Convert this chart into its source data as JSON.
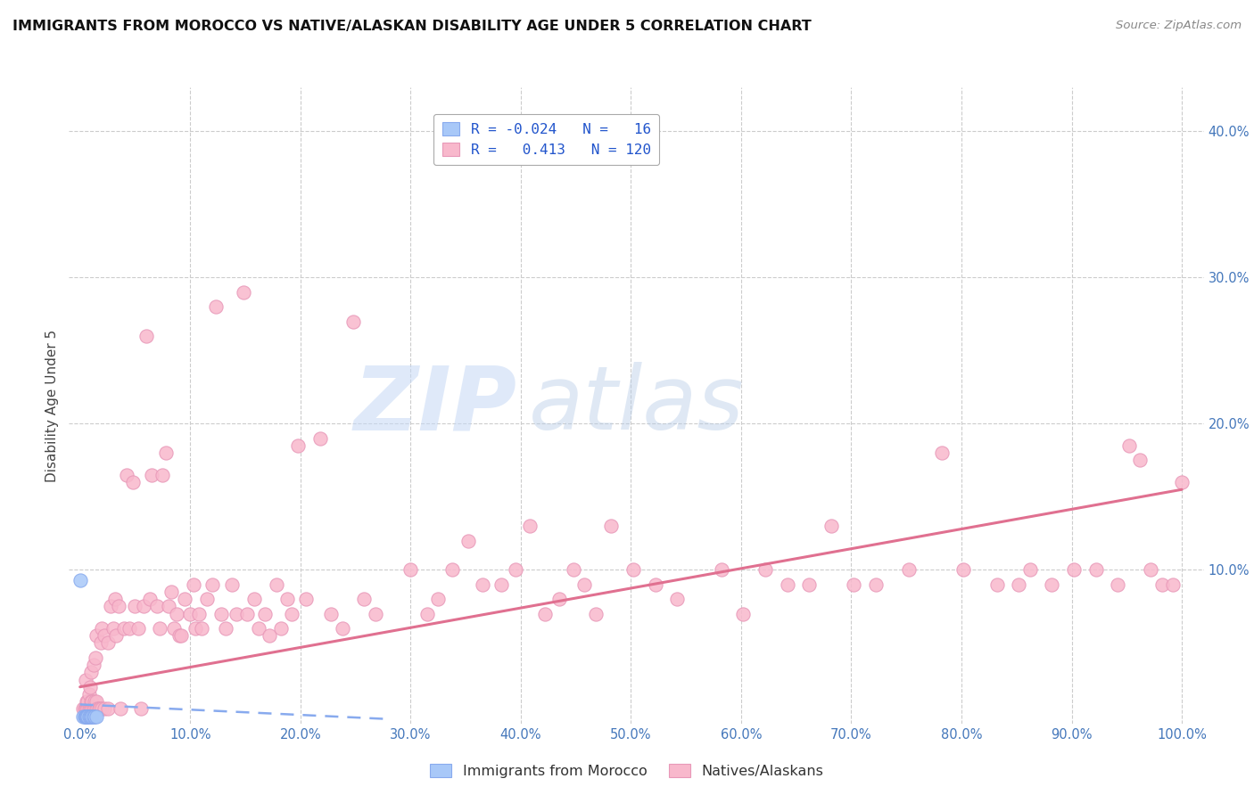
{
  "title": "IMMIGRANTS FROM MOROCCO VS NATIVE/ALASKAN DISABILITY AGE UNDER 5 CORRELATION CHART",
  "source": "Source: ZipAtlas.com",
  "ylabel": "Disability Age Under 5",
  "xlim": [
    -0.01,
    1.02
  ],
  "ylim": [
    -0.005,
    0.43
  ],
  "xticks": [
    0.0,
    0.1,
    0.2,
    0.3,
    0.4,
    0.5,
    0.6,
    0.7,
    0.8,
    0.9,
    1.0
  ],
  "xticklabels": [
    "0.0%",
    "10.0%",
    "20.0%",
    "30.0%",
    "40.0%",
    "50.0%",
    "60.0%",
    "70.0%",
    "80.0%",
    "90.0%",
    "100.0%"
  ],
  "yticks": [
    0.0,
    0.1,
    0.2,
    0.3,
    0.4
  ],
  "yticklabels": [
    "",
    "10.0%",
    "20.0%",
    "30.0%",
    "40.0%"
  ],
  "color_blue_fill": "#a8c8f8",
  "color_pink_fill": "#f8b8cc",
  "color_blue_edge": "#88aaee",
  "color_pink_edge": "#e898b8",
  "trendline_pink": "#e07090",
  "trendline_blue": "#88aaee",
  "watermark_zip": "ZIP",
  "watermark_atlas": "atlas",
  "morocco_points": [
    [
      0.0,
      0.093
    ],
    [
      0.003,
      0.0
    ],
    [
      0.004,
      0.0
    ],
    [
      0.005,
      0.0
    ],
    [
      0.005,
      0.0
    ],
    [
      0.006,
      0.0
    ],
    [
      0.006,
      0.0
    ],
    [
      0.007,
      0.0
    ],
    [
      0.007,
      0.0
    ],
    [
      0.008,
      0.0
    ],
    [
      0.009,
      0.0
    ],
    [
      0.01,
      0.0
    ],
    [
      0.011,
      0.0
    ],
    [
      0.012,
      0.0
    ],
    [
      0.013,
      0.0
    ],
    [
      0.015,
      0.0
    ]
  ],
  "native_points": [
    [
      0.003,
      0.005
    ],
    [
      0.004,
      0.005
    ],
    [
      0.005,
      0.005
    ],
    [
      0.005,
      0.025
    ],
    [
      0.006,
      0.005
    ],
    [
      0.006,
      0.01
    ],
    [
      0.007,
      0.005
    ],
    [
      0.007,
      0.01
    ],
    [
      0.008,
      0.005
    ],
    [
      0.008,
      0.015
    ],
    [
      0.009,
      0.005
    ],
    [
      0.009,
      0.02
    ],
    [
      0.01,
      0.005
    ],
    [
      0.01,
      0.01
    ],
    [
      0.01,
      0.03
    ],
    [
      0.011,
      0.005
    ],
    [
      0.011,
      0.01
    ],
    [
      0.012,
      0.005
    ],
    [
      0.012,
      0.035
    ],
    [
      0.013,
      0.005
    ],
    [
      0.013,
      0.01
    ],
    [
      0.014,
      0.04
    ],
    [
      0.015,
      0.005
    ],
    [
      0.015,
      0.01
    ],
    [
      0.015,
      0.055
    ],
    [
      0.016,
      0.005
    ],
    [
      0.017,
      0.005
    ],
    [
      0.018,
      0.005
    ],
    [
      0.019,
      0.05
    ],
    [
      0.02,
      0.005
    ],
    [
      0.02,
      0.06
    ],
    [
      0.022,
      0.005
    ],
    [
      0.022,
      0.055
    ],
    [
      0.025,
      0.005
    ],
    [
      0.025,
      0.05
    ],
    [
      0.028,
      0.075
    ],
    [
      0.03,
      0.06
    ],
    [
      0.032,
      0.08
    ],
    [
      0.033,
      0.055
    ],
    [
      0.035,
      0.075
    ],
    [
      0.037,
      0.005
    ],
    [
      0.04,
      0.06
    ],
    [
      0.042,
      0.165
    ],
    [
      0.045,
      0.06
    ],
    [
      0.048,
      0.16
    ],
    [
      0.05,
      0.075
    ],
    [
      0.053,
      0.06
    ],
    [
      0.055,
      0.005
    ],
    [
      0.058,
      0.075
    ],
    [
      0.06,
      0.26
    ],
    [
      0.063,
      0.08
    ],
    [
      0.065,
      0.165
    ],
    [
      0.07,
      0.075
    ],
    [
      0.072,
      0.06
    ],
    [
      0.075,
      0.165
    ],
    [
      0.078,
      0.18
    ],
    [
      0.08,
      0.075
    ],
    [
      0.083,
      0.085
    ],
    [
      0.085,
      0.06
    ],
    [
      0.088,
      0.07
    ],
    [
      0.09,
      0.055
    ],
    [
      0.092,
      0.055
    ],
    [
      0.095,
      0.08
    ],
    [
      0.1,
      0.07
    ],
    [
      0.103,
      0.09
    ],
    [
      0.105,
      0.06
    ],
    [
      0.108,
      0.07
    ],
    [
      0.11,
      0.06
    ],
    [
      0.115,
      0.08
    ],
    [
      0.12,
      0.09
    ],
    [
      0.123,
      0.28
    ],
    [
      0.128,
      0.07
    ],
    [
      0.132,
      0.06
    ],
    [
      0.138,
      0.09
    ],
    [
      0.142,
      0.07
    ],
    [
      0.148,
      0.29
    ],
    [
      0.152,
      0.07
    ],
    [
      0.158,
      0.08
    ],
    [
      0.162,
      0.06
    ],
    [
      0.168,
      0.07
    ],
    [
      0.172,
      0.055
    ],
    [
      0.178,
      0.09
    ],
    [
      0.182,
      0.06
    ],
    [
      0.188,
      0.08
    ],
    [
      0.192,
      0.07
    ],
    [
      0.198,
      0.185
    ],
    [
      0.205,
      0.08
    ],
    [
      0.218,
      0.19
    ],
    [
      0.228,
      0.07
    ],
    [
      0.238,
      0.06
    ],
    [
      0.248,
      0.27
    ],
    [
      0.258,
      0.08
    ],
    [
      0.268,
      0.07
    ],
    [
      0.3,
      0.1
    ],
    [
      0.315,
      0.07
    ],
    [
      0.325,
      0.08
    ],
    [
      0.338,
      0.1
    ],
    [
      0.352,
      0.12
    ],
    [
      0.365,
      0.09
    ],
    [
      0.382,
      0.09
    ],
    [
      0.395,
      0.1
    ],
    [
      0.408,
      0.13
    ],
    [
      0.422,
      0.07
    ],
    [
      0.435,
      0.08
    ],
    [
      0.448,
      0.1
    ],
    [
      0.458,
      0.09
    ],
    [
      0.468,
      0.07
    ],
    [
      0.482,
      0.13
    ],
    [
      0.502,
      0.1
    ],
    [
      0.522,
      0.09
    ],
    [
      0.542,
      0.08
    ],
    [
      0.582,
      0.1
    ],
    [
      0.602,
      0.07
    ],
    [
      0.622,
      0.1
    ],
    [
      0.642,
      0.09
    ],
    [
      0.662,
      0.09
    ],
    [
      0.682,
      0.13
    ],
    [
      0.702,
      0.09
    ],
    [
      0.722,
      0.09
    ],
    [
      0.752,
      0.1
    ],
    [
      0.782,
      0.18
    ],
    [
      0.802,
      0.1
    ],
    [
      0.832,
      0.09
    ],
    [
      0.852,
      0.09
    ],
    [
      0.862,
      0.1
    ],
    [
      0.882,
      0.09
    ],
    [
      0.902,
      0.1
    ],
    [
      0.922,
      0.1
    ],
    [
      0.942,
      0.09
    ],
    [
      0.952,
      0.185
    ],
    [
      0.962,
      0.175
    ],
    [
      0.972,
      0.1
    ],
    [
      0.982,
      0.09
    ],
    [
      0.992,
      0.09
    ],
    [
      1.0,
      0.16
    ]
  ],
  "pink_trend_x": [
    0.0,
    1.0
  ],
  "pink_trend_y": [
    0.02,
    0.155
  ],
  "blue_trend_x": [
    0.0,
    0.28
  ],
  "blue_trend_y": [
    0.008,
    -0.002
  ]
}
